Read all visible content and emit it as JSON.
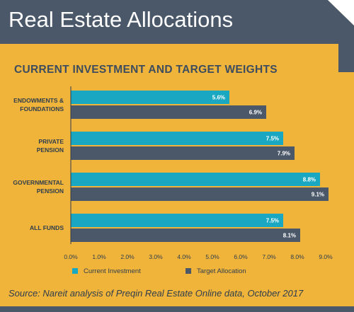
{
  "header": {
    "title": "Real Estate Allocations"
  },
  "source": "Source: Nareit analysis of Preqin Real Estate Online data, October 2017",
  "colors": {
    "background": "#f0b43a",
    "header": "#4a5869",
    "current": "#1aa7c2",
    "target": "#4a5869"
  },
  "chart_data": {
    "type": "bar",
    "orientation": "horizontal",
    "title": "CURRENT INVESTMENT AND TARGET WEIGHTS",
    "categories": [
      [
        "ENDOWMENTS &",
        "FOUNDATIONS"
      ],
      [
        "PRIVATE",
        "PENSION"
      ],
      [
        "GOVERNMENTAL",
        "PENSION"
      ],
      [
        "ALL FUNDS"
      ]
    ],
    "series": [
      {
        "name": "Current Investment",
        "values": [
          5.6,
          7.5,
          8.8,
          7.5
        ],
        "labels": [
          "5.6%",
          "7.5%",
          "8.8%",
          "7.5%"
        ]
      },
      {
        "name": "Target Allocation",
        "values": [
          6.9,
          7.9,
          9.1,
          8.1
        ],
        "labels": [
          "6.9%",
          "7.9%",
          "9.1%",
          "8.1%"
        ]
      }
    ],
    "xlim": [
      0,
      9
    ],
    "ticks": [
      "0.0%",
      "1.0%",
      "2.0%",
      "3.0%",
      "4.0%",
      "5.0%",
      "6.0%",
      "7.0%",
      "8.0%",
      "9.0%"
    ],
    "grid": false,
    "legend_position": "bottom"
  }
}
